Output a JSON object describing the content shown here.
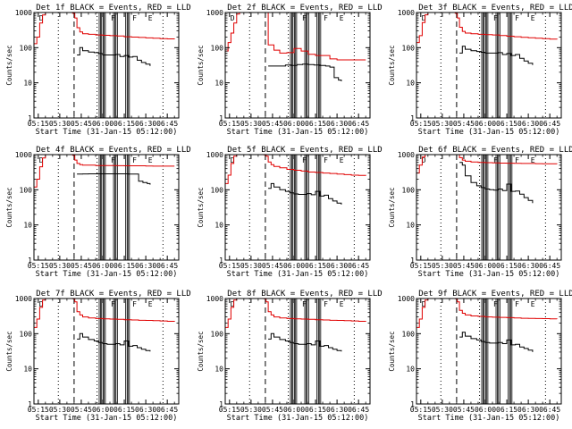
{
  "chart_data": {
    "type": "line",
    "y_scale": "log",
    "ylim": [
      1,
      1000
    ],
    "y_ticks": [
      "1",
      "10",
      "100",
      "1000"
    ],
    "x_tick_labels": [
      "05:15",
      "05:30",
      "05:45",
      "06:00",
      "06:15",
      "06:30",
      "06:45"
    ],
    "x_tick_minutes": [
      315,
      330,
      345,
      360,
      375,
      390,
      405
    ],
    "xlim_minutes": [
      312,
      413
    ],
    "xlabel": "Start Time (31-Jan-15 05:12:00)",
    "ylabel": "Counts/sec",
    "series_colors": {
      "events": "#000000",
      "lld": "#e00000"
    },
    "dashed_lines_minutes": [
      340
    ],
    "dotted_lines_minutes": [
      329,
      356,
      402
    ],
    "saa_windows_minutes": [
      [
        357.5,
        358.5
      ],
      [
        359.2,
        360.2
      ],
      [
        360.8,
        361.8
      ],
      [
        367.5,
        368.5
      ],
      [
        369.2,
        370.2
      ],
      [
        376,
        377
      ],
      [
        377.6,
        378.6
      ]
    ],
    "marker_positions_minutes": [
      315,
      365,
      380,
      391
    ],
    "marker_letters": [
      "D",
      "F",
      "F",
      "E"
    ],
    "panels": [
      {
        "title": "Det 1f BLACK = Events, RED = LLD",
        "events": {
          "x": [
            342,
            344,
            346,
            350,
            354,
            357,
            360,
            363,
            366,
            369,
            372,
            375,
            378,
            381,
            384,
            387,
            390,
            393
          ],
          "y": [
            62,
            100,
            82,
            75,
            72,
            68,
            62,
            62,
            62,
            64,
            56,
            60,
            54,
            56,
            44,
            38,
            34,
            30
          ]
        },
        "lld": {
          "x": [
            312,
            314,
            316,
            318,
            320,
            323,
            326,
            330,
            334,
            337,
            339,
            340.5,
            342,
            344,
            346,
            350,
            355,
            360,
            365,
            370,
            375,
            380,
            385,
            390,
            395,
            400,
            405,
            410
          ],
          "y": [
            130,
            200,
            500,
            850,
            1000,
            1000,
            1000,
            1000,
            1000,
            1000,
            950,
            700,
            370,
            280,
            250,
            240,
            230,
            225,
            220,
            215,
            205,
            200,
            195,
            190,
            185,
            180,
            178,
            175
          ]
        }
      },
      {
        "title": "Det 2f BLACK = Events, RED = LLD",
        "events": {
          "x": [
            342,
            346,
            350,
            354,
            358,
            362,
            366,
            370,
            374,
            378,
            382,
            385,
            388,
            391,
            393
          ],
          "y": [
            30,
            30,
            30,
            32,
            31,
            33,
            34,
            33,
            32,
            31,
            30,
            28,
            14,
            12,
            11
          ]
        },
        "lld": {
          "x": [
            312,
            314,
            316,
            318,
            320,
            322,
            324,
            327,
            330,
            333,
            336,
            339,
            342,
            346,
            350,
            355,
            360,
            365,
            370,
            375,
            380,
            385,
            390,
            395,
            400,
            405,
            410
          ],
          "y": [
            80,
            140,
            260,
            500,
            900,
            1000,
            1000,
            1000,
            1000,
            1000,
            1000,
            1000,
            120,
            85,
            70,
            72,
            95,
            80,
            65,
            60,
            60,
            48,
            45,
            45,
            45,
            45,
            45
          ]
        }
      },
      {
        "title": "Det 3f BLACK = Events, RED = LLD",
        "events": {
          "x": [
            342,
            344,
            346,
            350,
            354,
            357,
            360,
            363,
            366,
            369,
            372,
            375,
            378,
            381,
            384,
            387,
            390,
            393
          ],
          "y": [
            70,
            110,
            90,
            82,
            78,
            74,
            70,
            70,
            70,
            72,
            64,
            68,
            60,
            64,
            50,
            42,
            36,
            32
          ]
        },
        "lld": {
          "x": [
            312,
            314,
            316,
            318,
            320,
            323,
            326,
            330,
            334,
            337,
            339,
            340.5,
            342,
            344,
            346,
            350,
            355,
            360,
            365,
            370,
            375,
            380,
            385,
            390,
            395,
            400,
            405,
            410
          ],
          "y": [
            140,
            220,
            520,
            860,
            1000,
            1000,
            1000,
            1000,
            1000,
            1000,
            950,
            700,
            380,
            290,
            260,
            250,
            240,
            235,
            230,
            222,
            212,
            205,
            198,
            192,
            186,
            180,
            176,
            172
          ]
        }
      },
      {
        "title": "Det 4f BLACK = Events, RED = LLD",
        "events": {
          "x": [
            342,
            346,
            350,
            354,
            358,
            362,
            366,
            370,
            374,
            378,
            382,
            385,
            388,
            391,
            393
          ],
          "y": [
            280,
            282,
            284,
            284,
            284,
            284,
            284,
            284,
            284,
            280,
            280,
            175,
            160,
            150,
            140
          ]
        },
        "lld": {
          "x": [
            312,
            314,
            316,
            318,
            320,
            323,
            326,
            330,
            334,
            337,
            339,
            340.5,
            342,
            344,
            346,
            350,
            355,
            360,
            365,
            370,
            375,
            380,
            385,
            390,
            395,
            400,
            405,
            410
          ],
          "y": [
            120,
            200,
            450,
            800,
            1000,
            1000,
            1000,
            1000,
            1000,
            1000,
            960,
            700,
            560,
            520,
            500,
            500,
            490,
            490,
            490,
            485,
            480,
            480,
            480,
            475,
            470,
            470,
            470,
            470
          ]
        }
      },
      {
        "title": "Det 5f BLACK = Events, RED = LLD",
        "events": {
          "x": [
            342,
            344,
            346,
            350,
            354,
            357,
            360,
            363,
            366,
            369,
            372,
            375,
            378,
            381,
            384,
            387,
            390,
            393
          ],
          "y": [
            110,
            150,
            120,
            100,
            90,
            82,
            76,
            74,
            74,
            78,
            72,
            90,
            66,
            70,
            56,
            48,
            42,
            38
          ]
        },
        "lld": {
          "x": [
            312,
            314,
            316,
            318,
            320,
            323,
            326,
            330,
            334,
            337,
            339,
            340.5,
            342,
            344,
            346,
            350,
            355,
            360,
            365,
            370,
            375,
            380,
            385,
            390,
            395,
            400,
            405,
            410
          ],
          "y": [
            150,
            260,
            560,
            900,
            1000,
            1000,
            1000,
            1000,
            1000,
            1000,
            980,
            900,
            620,
            520,
            460,
            420,
            380,
            360,
            340,
            320,
            310,
            300,
            290,
            280,
            270,
            260,
            255,
            250
          ]
        }
      },
      {
        "title": "Det 6f BLACK = Events, RED = LLD",
        "events": {
          "x": [
            342,
            344,
            346,
            350,
            354,
            357,
            360,
            363,
            366,
            369,
            372,
            375,
            378,
            381,
            384,
            387,
            390,
            393
          ],
          "y": [
            600,
            500,
            250,
            160,
            130,
            115,
            105,
            100,
            98,
            105,
            95,
            145,
            90,
            92,
            75,
            60,
            50,
            42
          ]
        },
        "lld": {
          "x": [
            312,
            314,
            316,
            318,
            320,
            323,
            326,
            330,
            334,
            337,
            339,
            340.5,
            342,
            344,
            346,
            350,
            355,
            360,
            365,
            370,
            375,
            380,
            385,
            390,
            395,
            400,
            405,
            410
          ],
          "y": [
            300,
            500,
            850,
            1000,
            1000,
            1000,
            1000,
            1000,
            1000,
            1000,
            1000,
            1000,
            820,
            700,
            650,
            620,
            600,
            590,
            580,
            575,
            570,
            565,
            560,
            560,
            555,
            550,
            548,
            545
          ]
        }
      },
      {
        "title": "Det 7f BLACK = Events, RED = LLD",
        "events": {
          "x": [
            342,
            344,
            346,
            350,
            354,
            357,
            360,
            363,
            366,
            369,
            372,
            375,
            378,
            381,
            384,
            387,
            390,
            393
          ],
          "y": [
            70,
            100,
            80,
            68,
            62,
            56,
            52,
            50,
            50,
            52,
            48,
            62,
            44,
            46,
            40,
            36,
            33,
            31
          ]
        },
        "lld": {
          "x": [
            312,
            314,
            316,
            318,
            320,
            323,
            326,
            330,
            334,
            337,
            339,
            340.5,
            342,
            344,
            346,
            350,
            355,
            360,
            365,
            370,
            375,
            380,
            385,
            390,
            395,
            400,
            405,
            410
          ],
          "y": [
            150,
            260,
            560,
            900,
            1000,
            1000,
            1000,
            1000,
            1000,
            1000,
            980,
            800,
            420,
            340,
            300,
            280,
            270,
            265,
            260,
            255,
            250,
            245,
            240,
            238,
            235,
            230,
            225,
            220
          ]
        }
      },
      {
        "title": "Det 8f BLACK = Events, RED = LLD",
        "events": {
          "x": [
            342,
            344,
            346,
            350,
            354,
            357,
            360,
            363,
            366,
            369,
            372,
            375,
            378,
            381,
            384,
            387,
            390,
            393
          ],
          "y": [
            70,
            100,
            80,
            68,
            62,
            56,
            52,
            50,
            50,
            52,
            48,
            62,
            44,
            46,
            40,
            36,
            33,
            31
          ]
        },
        "lld": {
          "x": [
            312,
            314,
            316,
            318,
            320,
            323,
            326,
            330,
            334,
            337,
            339,
            340.5,
            342,
            344,
            346,
            350,
            355,
            360,
            365,
            370,
            375,
            380,
            385,
            390,
            395,
            400,
            405,
            410
          ],
          "y": [
            150,
            260,
            560,
            900,
            1000,
            1000,
            1000,
            1000,
            1000,
            1000,
            980,
            800,
            420,
            340,
            300,
            280,
            270,
            265,
            260,
            255,
            250,
            245,
            240,
            238,
            235,
            230,
            225,
            220
          ]
        }
      },
      {
        "title": "Det 9f BLACK = Events, RED = LLD",
        "events": {
          "x": [
            342,
            344,
            346,
            350,
            354,
            357,
            360,
            363,
            366,
            369,
            372,
            375,
            378,
            381,
            384,
            387,
            390,
            393
          ],
          "y": [
            80,
            110,
            85,
            72,
            66,
            60,
            56,
            54,
            54,
            56,
            52,
            66,
            48,
            50,
            42,
            38,
            34,
            30
          ]
        },
        "lld": {
          "x": [
            312,
            314,
            316,
            318,
            320,
            323,
            326,
            330,
            334,
            337,
            339,
            340.5,
            342,
            344,
            346,
            350,
            355,
            360,
            365,
            370,
            375,
            380,
            385,
            390,
            395,
            400,
            405,
            410
          ],
          "y": [
            150,
            260,
            560,
            900,
            1000,
            1000,
            1000,
            1000,
            1000,
            1000,
            980,
            800,
            460,
            380,
            340,
            320,
            310,
            300,
            295,
            290,
            285,
            280,
            275,
            272,
            270,
            268,
            265,
            262
          ]
        }
      }
    ]
  }
}
